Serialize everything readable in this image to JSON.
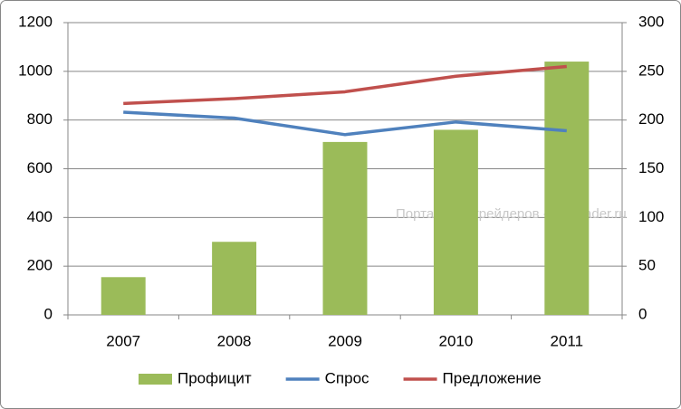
{
  "chart_data": {
    "type": "bar",
    "categories": [
      "2007",
      "2008",
      "2009",
      "2010",
      "2011"
    ],
    "series": [
      {
        "name": "Профицит",
        "type": "bar",
        "color": "#9bbb59",
        "values": [
          155,
          300,
          710,
          760,
          1040
        ]
      },
      {
        "name": "Спрос",
        "type": "line",
        "axis": "y2",
        "color": "#4f81bd",
        "values": [
          208,
          202,
          185,
          198,
          189
        ]
      },
      {
        "name": "Предложение",
        "type": "line",
        "axis": "y2",
        "color": "#c0504d",
        "values": [
          217,
          222,
          229,
          245,
          255
        ]
      }
    ],
    "ylim": [
      0,
      1200
    ],
    "yticks": [
      0,
      200,
      400,
      600,
      800,
      1000,
      1200
    ],
    "y2lim": [
      0,
      300
    ],
    "y2ticks": [
      0,
      50,
      100,
      150,
      200,
      250,
      300
    ],
    "grid": true,
    "legend": "bottom",
    "annotation": "Портал для трейдеров - ForTrader.ru"
  }
}
